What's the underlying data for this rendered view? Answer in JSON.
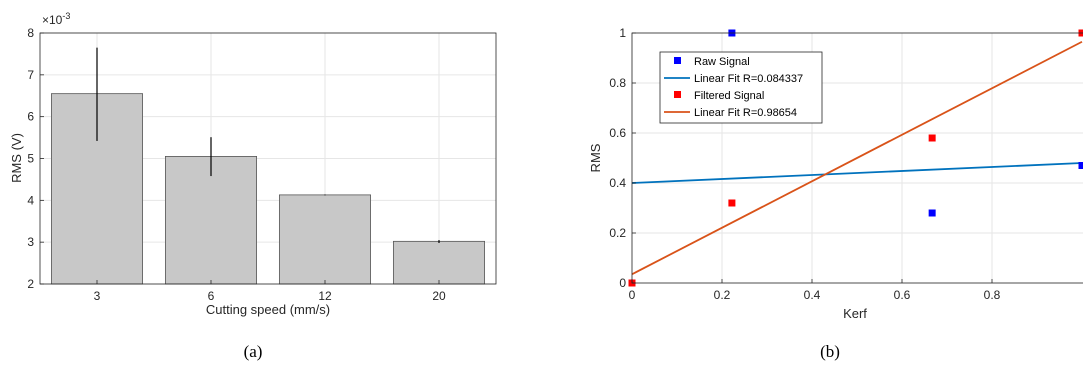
{
  "chart_data": [
    {
      "type": "bar",
      "caption": "(a)",
      "categories": [
        "3",
        "6",
        "12",
        "20"
      ],
      "values": [
        0.00655,
        0.00505,
        0.00413,
        0.00302
      ],
      "error_low": [
        0.00542,
        0.00458,
        0.00412,
        0.00298
      ],
      "error_high": [
        0.00765,
        0.00551,
        0.00414,
        0.00305
      ],
      "title": "",
      "xlabel": "Cutting speed (mm/s)",
      "ylabel": "RMS (V)",
      "ylim": [
        0.002,
        0.008
      ],
      "yticks": [
        2,
        3,
        4,
        5,
        6,
        7,
        8
      ],
      "y_exponent_label": "×10",
      "y_exponent": "-3",
      "bar_color": "#c8c8c8",
      "grid": true
    },
    {
      "type": "scatter",
      "caption": "(b)",
      "xlabel": "Kerf",
      "ylabel": "RMS",
      "xlim": [
        0,
        1
      ],
      "ylim": [
        0,
        1
      ],
      "xticks": [
        "0",
        "0.2",
        "0.4",
        "0.6",
        "0.8"
      ],
      "yticks": [
        "0",
        "0.2",
        "0.4",
        "0.6",
        "0.8",
        "1"
      ],
      "grid": true,
      "legend_position": "top-left",
      "series": [
        {
          "name": "Raw Signal",
          "kind": "points",
          "color": "#0000ff",
          "points": [
            [
              0.222,
              1.0
            ],
            [
              0.667,
              0.28
            ],
            [
              1.0,
              0.47
            ]
          ]
        },
        {
          "name": "Linear Fit R=0.084337",
          "kind": "line",
          "color": "#0072bd",
          "points": [
            [
              0,
              0.4
            ],
            [
              1.0,
              0.48
            ]
          ]
        },
        {
          "name": "Filtered Signal",
          "kind": "points",
          "color": "#ff0000",
          "points": [
            [
              0,
              0.0
            ],
            [
              0.222,
              0.32
            ],
            [
              0.667,
              0.58
            ],
            [
              1.0,
              1.0
            ]
          ]
        },
        {
          "name": "Linear Fit R=0.98654",
          "kind": "line",
          "color": "#d95319",
          "points": [
            [
              0,
              0.035
            ],
            [
              1.0,
              0.965
            ]
          ]
        }
      ]
    }
  ]
}
